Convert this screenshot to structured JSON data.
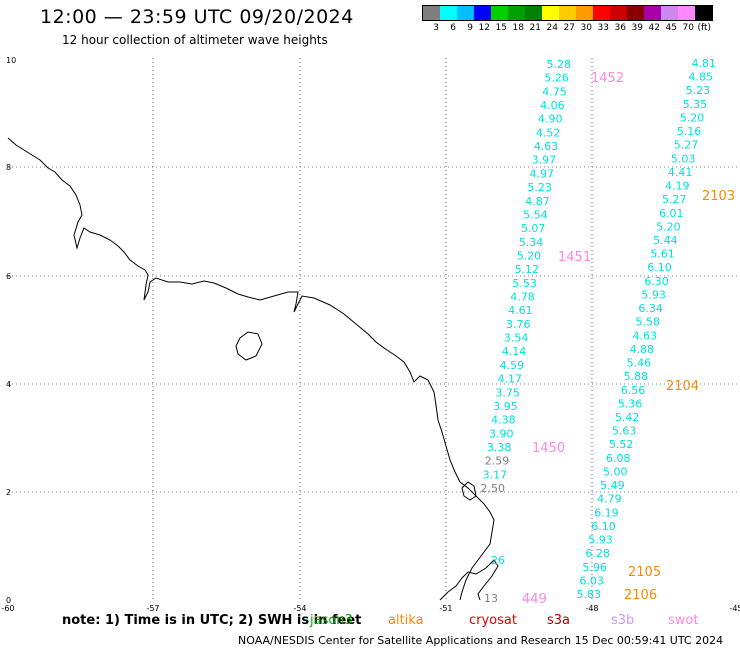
{
  "title": "12:00 — 23:59 UTC 09/20/2024",
  "subtitle": "12 hour collection of altimeter wave heights",
  "legend": {
    "colors": [
      "#7f7f7f",
      "#00ffff",
      "#00bfff",
      "#0000ff",
      "#00d000",
      "#00a000",
      "#008000",
      "#ffff00",
      "#ffcc00",
      "#ff9900",
      "#ff0000",
      "#cc0000",
      "#880000",
      "#aa00aa",
      "#cc88ee",
      "#ff88ff",
      "#000000"
    ],
    "labels": [
      "3",
      "6",
      "9",
      "12",
      "15",
      "18",
      "21",
      "24",
      "27",
      "30",
      "33",
      "36",
      "39",
      "42",
      "45",
      "70",
      "(ft)"
    ]
  },
  "map": {
    "lon_ticks": [
      "-60",
      "-57",
      "-54",
      "-51",
      "-48",
      "-45"
    ],
    "lat_ticks": [
      "0",
      "2",
      "4",
      "6",
      "8",
      "10"
    ]
  },
  "tracks": {
    "track_1": {
      "values": [
        "5.28",
        "5.26",
        "4.75",
        "4.06",
        "4.90",
        "4.52",
        "4.63",
        "3.97",
        "4.97",
        "5.23",
        "4.87",
        "5.54",
        "5.07",
        "5.34",
        "5.20",
        "5.12",
        "5.53",
        "4.78",
        "4.61",
        "3.76",
        "3.54",
        "4.14",
        "4.59",
        "4.17",
        "3.75",
        "3.95",
        "4.38",
        "3.90",
        "3.38",
        "2.59",
        "3.17",
        "2.50"
      ],
      "colors": [
        "#00e0e0",
        "#00e0e0",
        "#00e0e0",
        "#00e0e0",
        "#00e0e0",
        "#00e0e0",
        "#00e0e0",
        "#00e0e0",
        "#00e0e0",
        "#00e0e0",
        "#00e0e0",
        "#00e0e0",
        "#00e0e0",
        "#00e0e0",
        "#00e0e0",
        "#00e0e0",
        "#00e0e0",
        "#00e0e0",
        "#00e0e0",
        "#00e0e0",
        "#00e0e0",
        "#00e0e0",
        "#00e0e0",
        "#00e0e0",
        "#00e0e0",
        "#00e0e0",
        "#00e0e0",
        "#00e0e0",
        "#00e0e0",
        "#808080",
        "#00e0e0",
        "#808080"
      ],
      "time_labels": [
        {
          "text": "1452",
          "color": "#ff88dd"
        },
        {
          "text": "1451",
          "color": "#ff88dd"
        },
        {
          "text": "1450",
          "color": "#ff88dd"
        }
      ]
    },
    "track_2": {
      "values": [
        "4.81",
        "4.85",
        "5.23",
        "5.35",
        "5.20",
        "5.16",
        "5.27",
        "5.03",
        "4.41",
        "4.19",
        "5.27",
        "6.01",
        "5.20",
        "5.44",
        "5.61",
        "6.10",
        "6.30",
        "5.93",
        "6.34",
        "5.58",
        "4.63",
        "4.88",
        "5.46",
        "5.88",
        "6.56",
        "5.36",
        "5.42",
        "5.63",
        "5.52",
        "6.08",
        "5.00",
        "5.49",
        "4.79",
        "6.19",
        "6.10",
        "5.93",
        "6.28",
        "5.96",
        "6.03",
        "5.83"
      ],
      "time_labels": [
        {
          "text": "2103",
          "color": "#ff8800"
        },
        {
          "text": "2104",
          "color": "#ff8800"
        },
        {
          "text": "2105",
          "color": "#ff8800"
        },
        {
          "text": "2106",
          "color": "#ff8800"
        }
      ]
    },
    "partial": {
      "left_value": "26",
      "bottom_value": "13",
      "bottom_time": "449"
    }
  },
  "footer": {
    "note": "note: 1) Time is in UTC; 2) SWH is in feet",
    "satellites": [
      {
        "name": "jason3",
        "color": "#00aa00"
      },
      {
        "name": "altika",
        "color": "#ff8800"
      },
      {
        "name": "cryosat",
        "color": "#dd0000"
      },
      {
        "name": "s3a",
        "color": "#aa0000"
      },
      {
        "name": "s3b",
        "color": "#cc99ee"
      },
      {
        "name": "swot",
        "color": "#ff88dd"
      }
    ],
    "credit": "NOAA/NESDIS Center for Satellite Applications and Research    15 Dec 00:59:41 UTC 2024"
  }
}
